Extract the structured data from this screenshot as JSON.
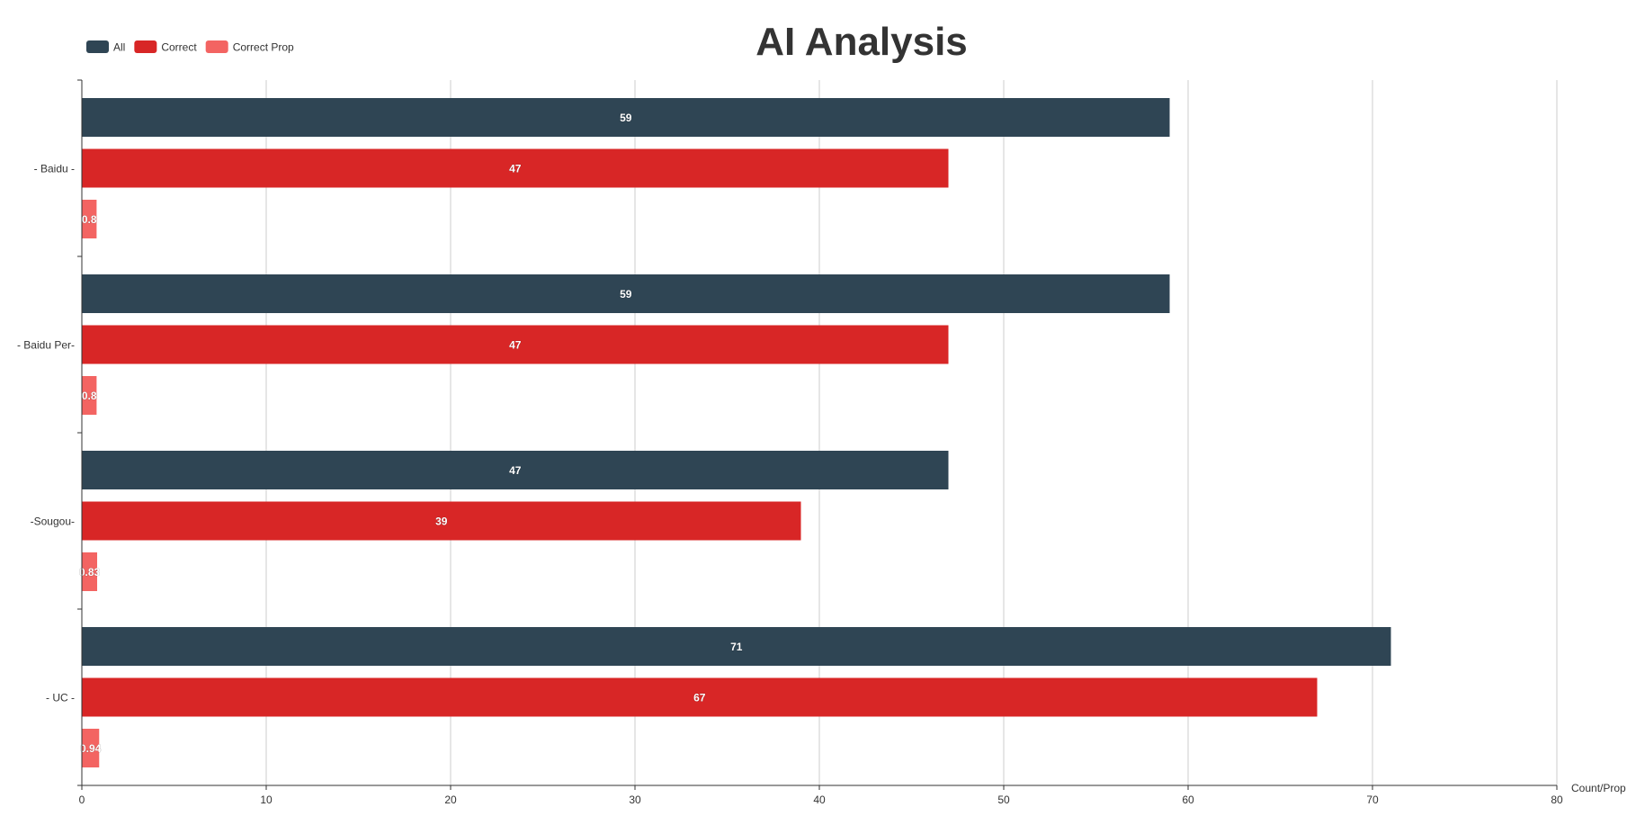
{
  "colors": {
    "all": "#2f4554",
    "correct": "#d82626",
    "correct_prop": "#f36462",
    "text": "#333333",
    "grid": "#cccccc",
    "axis": "#333333",
    "label_text": "#ffffff"
  },
  "chart_data": {
    "type": "bar",
    "orientation": "horizontal",
    "title": "AI Analysis",
    "xlabel": "Count/Prop",
    "ylabel": "",
    "xlim": [
      0,
      80
    ],
    "xticks": [
      0,
      10,
      20,
      30,
      40,
      50,
      60,
      70,
      80
    ],
    "grid": true,
    "legend_position": "top-left",
    "categories": [
      "- Baidu -",
      "- Baidu Per-",
      "-Sougou-",
      "- UC -"
    ],
    "series": [
      {
        "name": "All",
        "values": [
          59,
          59,
          47,
          71
        ]
      },
      {
        "name": "Correct",
        "values": [
          47,
          47,
          39,
          67
        ]
      },
      {
        "name": "Correct Prop",
        "values": [
          0.8,
          0.8,
          0.83,
          0.94
        ]
      }
    ]
  }
}
